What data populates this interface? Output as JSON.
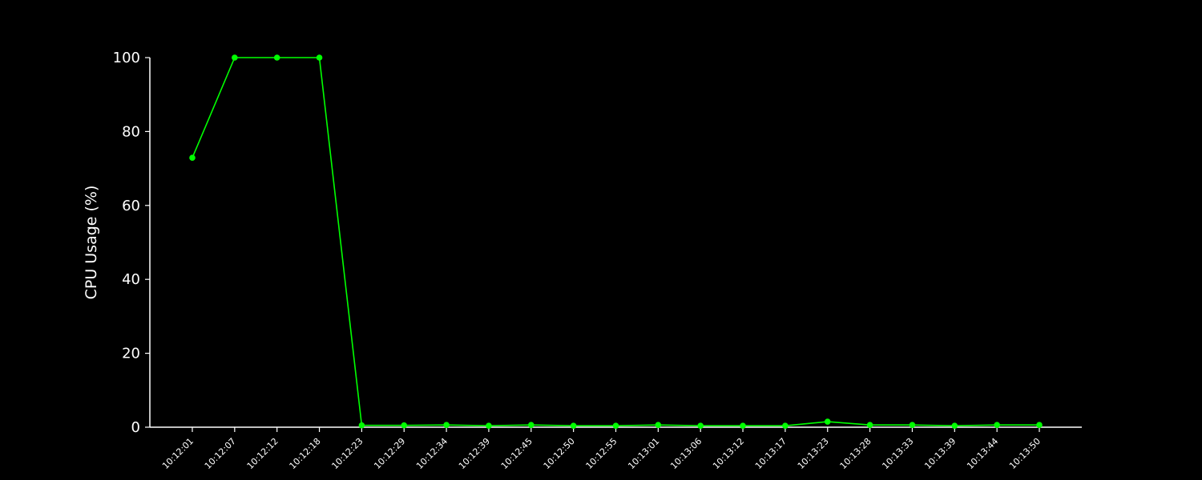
{
  "chart_data": {
    "type": "line",
    "title": "",
    "xlabel": "",
    "ylabel": "CPU Usage (%)",
    "ylim": [
      0,
      100
    ],
    "yticks": [
      0,
      20,
      40,
      60,
      80,
      100
    ],
    "grid": false,
    "categories": [
      "10:12:01",
      "10:12:07",
      "10:12:12",
      "10:12:18",
      "10:12:23",
      "10:12:29",
      "10:12:34",
      "10:12:39",
      "10:12:45",
      "10:12:50",
      "10:12:55",
      "10:13:01",
      "10:13:06",
      "10:13:12",
      "10:13:17",
      "10:13:23",
      "10:13:28",
      "10:13:33",
      "10:13:39",
      "10:13:44",
      "10:13:50"
    ],
    "series": [
      {
        "values": [
          72.9,
          100,
          100,
          100,
          0.5,
          0.5,
          0.6,
          0.4,
          0.6,
          0.4,
          0.4,
          0.6,
          0.4,
          0.4,
          0.4,
          1.5,
          0.6,
          0.6,
          0.4,
          0.6,
          0.6
        ]
      }
    ],
    "colors": {
      "background": "#000000",
      "axis": "#ffffff",
      "text": "#ffffff",
      "line": "#00ff00"
    }
  }
}
